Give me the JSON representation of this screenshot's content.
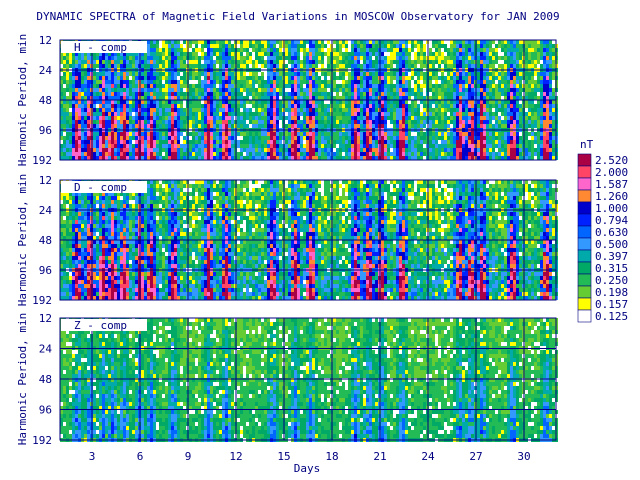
{
  "chart_data": {
    "type": "heatmap",
    "title": "DYNAMIC SPECTRA of Magnetic Field Variations in MOSCOW Observatory for JAN 2009",
    "xlabel": "Days",
    "ylabel": "Harmonic Period, min",
    "x_ticks": [
      "3",
      "6",
      "9",
      "12",
      "15",
      "18",
      "21",
      "24",
      "27",
      "30"
    ],
    "x_tick_values": [
      3,
      6,
      9,
      12,
      15,
      18,
      21,
      24,
      27,
      30
    ],
    "xlim": [
      1,
      32
    ],
    "y_ticks": [
      "12",
      "24",
      "48",
      "96",
      "192"
    ],
    "y_tick_values": [
      12,
      24,
      48,
      96,
      192
    ],
    "ylim": [
      12,
      192
    ],
    "y_scale": "log",
    "grid": true,
    "panels": [
      {
        "label": "H - comp",
        "activity": 1.0
      },
      {
        "label": "D - comp",
        "activity": 1.0
      },
      {
        "label": "Z - comp",
        "activity": 0.32
      }
    ],
    "active_days": [
      2.0,
      2.8,
      3.6,
      4.2,
      4.9,
      5.9,
      6.6,
      8.0,
      10.2,
      11.3,
      14.2,
      15.6,
      16.6,
      19.4,
      20.2,
      21.0,
      22.3,
      25.9,
      26.6,
      27.3,
      29.2,
      31.3
    ],
    "legend": {
      "unit": "nT",
      "placement": "right",
      "levels": [
        "2.520",
        "2.000",
        "1.587",
        "1.260",
        "1.000",
        "0.794",
        "0.630",
        "0.500",
        "0.397",
        "0.315",
        "0.250",
        "0.198",
        "0.157",
        "0.125"
      ],
      "colors": [
        "#aa0044",
        "#ff4466",
        "#ff66cc",
        "#ff8833",
        "#0000cc",
        "#0022ff",
        "#0066ff",
        "#3399ff",
        "#00aaaa",
        "#00aa66",
        "#22bb55",
        "#66cc33",
        "#ffff00",
        "#ffffff"
      ]
    }
  }
}
